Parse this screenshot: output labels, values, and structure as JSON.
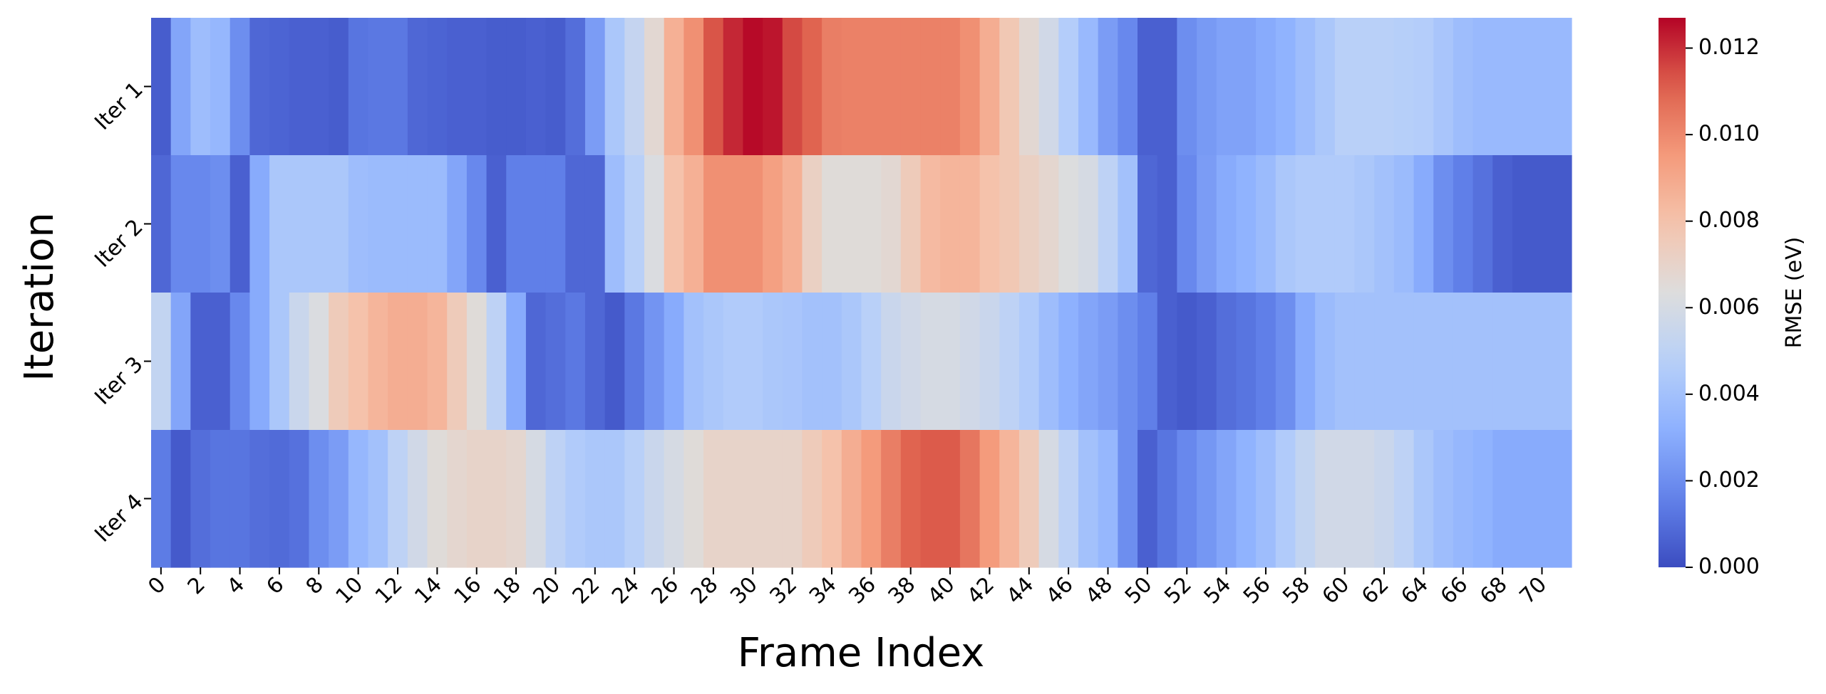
{
  "chart_data": {
    "type": "heatmap",
    "xlabel": "Frame Index",
    "ylabel": "Iteration",
    "colorbar_label": "RMSE (eV)",
    "colormap": "coolwarm",
    "rows": [
      "Iter 1",
      "Iter 2",
      "Iter 3",
      "Iter 4"
    ],
    "x_tick_labels": [
      "0",
      "2",
      "4",
      "6",
      "8",
      "10",
      "12",
      "14",
      "16",
      "18",
      "20",
      "22",
      "24",
      "26",
      "28",
      "30",
      "32",
      "34",
      "36",
      "38",
      "40",
      "42",
      "44",
      "46",
      "48",
      "50",
      "52",
      "54",
      "56",
      "58",
      "60",
      "62",
      "64",
      "66",
      "68",
      "70"
    ],
    "colorbar_ticks": [
      "0.000",
      "0.002",
      "0.004",
      "0.006",
      "0.008",
      "0.010",
      "0.012"
    ],
    "vmin": 0.0,
    "vmax": 0.0127,
    "values": [
      [
        0.0005,
        0.0028,
        0.0038,
        0.0035,
        0.002,
        0.0008,
        0.0007,
        0.0006,
        0.0006,
        0.0005,
        0.0012,
        0.0013,
        0.0013,
        0.0008,
        0.0007,
        0.0006,
        0.0006,
        0.0005,
        0.0005,
        0.0006,
        0.0005,
        0.001,
        0.0025,
        0.0043,
        0.0053,
        0.0067,
        0.0087,
        0.0098,
        0.0113,
        0.0121,
        0.0126,
        0.0124,
        0.0115,
        0.011,
        0.0103,
        0.0102,
        0.0102,
        0.0102,
        0.0102,
        0.0102,
        0.0102,
        0.0098,
        0.0088,
        0.0077,
        0.0067,
        0.0058,
        0.0046,
        0.0036,
        0.0025,
        0.0018,
        0.0006,
        0.0006,
        0.002,
        0.0024,
        0.0027,
        0.0027,
        0.003,
        0.0033,
        0.0038,
        0.0043,
        0.0048,
        0.0048,
        0.0048,
        0.0047,
        0.0046,
        0.0042,
        0.0038,
        0.0036,
        0.0036,
        0.0036,
        0.0036,
        0.0036
      ],
      [
        0.0008,
        0.0018,
        0.0018,
        0.002,
        0.0006,
        0.003,
        0.0043,
        0.0043,
        0.0043,
        0.0043,
        0.0038,
        0.0037,
        0.0037,
        0.0037,
        0.0037,
        0.0028,
        0.0018,
        0.0006,
        0.0015,
        0.0015,
        0.0015,
        0.0008,
        0.0008,
        0.0038,
        0.0048,
        0.0062,
        0.008,
        0.0087,
        0.0098,
        0.0098,
        0.0098,
        0.0093,
        0.0087,
        0.0072,
        0.0065,
        0.0065,
        0.0065,
        0.0067,
        0.0075,
        0.0083,
        0.0085,
        0.0085,
        0.008,
        0.0077,
        0.0072,
        0.0068,
        0.0063,
        0.006,
        0.005,
        0.004,
        0.0008,
        0.0006,
        0.0018,
        0.0025,
        0.003,
        0.0033,
        0.0037,
        0.0043,
        0.0045,
        0.0045,
        0.0045,
        0.0043,
        0.004,
        0.0037,
        0.003,
        0.002,
        0.0015,
        0.0011,
        0.0006,
        0.0004,
        0.0004,
        0.0004
      ],
      [
        0.0052,
        0.0028,
        0.0006,
        0.0006,
        0.0018,
        0.003,
        0.0043,
        0.0055,
        0.0062,
        0.0075,
        0.008,
        0.0085,
        0.0088,
        0.0088,
        0.0085,
        0.0075,
        0.0065,
        0.005,
        0.003,
        0.0008,
        0.001,
        0.0013,
        0.0008,
        0.0004,
        0.0013,
        0.0022,
        0.003,
        0.004,
        0.0043,
        0.0045,
        0.0045,
        0.0043,
        0.0042,
        0.004,
        0.004,
        0.0043,
        0.0048,
        0.0055,
        0.0058,
        0.006,
        0.006,
        0.0058,
        0.0055,
        0.005,
        0.0045,
        0.0038,
        0.0032,
        0.0028,
        0.0025,
        0.002,
        0.0015,
        0.0006,
        0.0004,
        0.0006,
        0.001,
        0.0012,
        0.0015,
        0.002,
        0.003,
        0.0037,
        0.004,
        0.004,
        0.004,
        0.004,
        0.004,
        0.004,
        0.004,
        0.004,
        0.004,
        0.004,
        0.004,
        0.004
      ],
      [
        0.0014,
        0.0004,
        0.001,
        0.0012,
        0.0012,
        0.001,
        0.0009,
        0.0011,
        0.002,
        0.0025,
        0.0035,
        0.004,
        0.005,
        0.0058,
        0.0065,
        0.0068,
        0.007,
        0.007,
        0.0068,
        0.006,
        0.005,
        0.0045,
        0.0043,
        0.0043,
        0.0048,
        0.0055,
        0.006,
        0.0065,
        0.007,
        0.007,
        0.007,
        0.007,
        0.007,
        0.0075,
        0.008,
        0.0088,
        0.0095,
        0.0103,
        0.011,
        0.0112,
        0.0112,
        0.0105,
        0.0095,
        0.0085,
        0.0075,
        0.006,
        0.005,
        0.004,
        0.0035,
        0.002,
        0.0006,
        0.0012,
        0.0018,
        0.0023,
        0.0028,
        0.0033,
        0.0038,
        0.0045,
        0.0052,
        0.0058,
        0.0058,
        0.0058,
        0.0055,
        0.005,
        0.0043,
        0.0038,
        0.0035,
        0.0033,
        0.003,
        0.003,
        0.003,
        0.003
      ]
    ]
  }
}
